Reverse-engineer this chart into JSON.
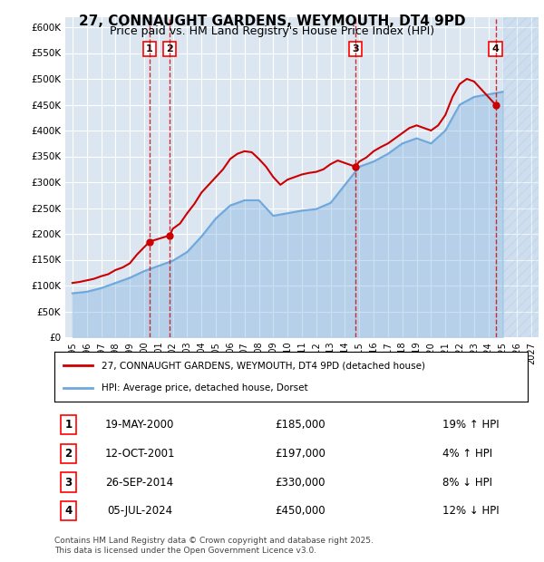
{
  "title": "27, CONNAUGHT GARDENS, WEYMOUTH, DT4 9PD",
  "subtitle": "Price paid vs. HM Land Registry's House Price Index (HPI)",
  "legend_line1": "27, CONNAUGHT GARDENS, WEYMOUTH, DT4 9PD (detached house)",
  "legend_line2": "HPI: Average price, detached house, Dorset",
  "footer": "Contains HM Land Registry data © Crown copyright and database right 2025.\nThis data is licensed under the Open Government Licence v3.0.",
  "table": [
    {
      "num": "1",
      "date": "19-MAY-2000",
      "price": "£185,000",
      "pct": "19% ↑ HPI"
    },
    {
      "num": "2",
      "date": "12-OCT-2001",
      "price": "£197,000",
      "pct": "4% ↑ HPI"
    },
    {
      "num": "3",
      "date": "26-SEP-2014",
      "price": "£330,000",
      "pct": "8% ↓ HPI"
    },
    {
      "num": "4",
      "date": "05-JUL-2024",
      "price": "£450,000",
      "pct": "12% ↓ HPI"
    }
  ],
  "sale_years": [
    2000.38,
    2001.78,
    2014.73,
    2024.5
  ],
  "sale_prices": [
    185000,
    197000,
    330000,
    450000
  ],
  "hpi_color": "#6fa8dc",
  "price_color": "#cc0000",
  "background_plot": "#dce6f1",
  "background_fig": "#ffffff",
  "grid_color": "#ffffff",
  "ylim": [
    0,
    620000
  ],
  "yticks": [
    0,
    50000,
    100000,
    150000,
    200000,
    250000,
    300000,
    350000,
    400000,
    450000,
    500000,
    550000,
    600000
  ],
  "xlim_start": 1994.5,
  "xlim_end": 2027.5,
  "xticks": [
    1995,
    1996,
    1997,
    1998,
    1999,
    2000,
    2001,
    2002,
    2003,
    2004,
    2005,
    2006,
    2007,
    2008,
    2009,
    2010,
    2011,
    2012,
    2013,
    2014,
    2015,
    2016,
    2017,
    2018,
    2019,
    2020,
    2021,
    2022,
    2023,
    2024,
    2025,
    2026,
    2027
  ],
  "hpi_years": [
    1995,
    1996,
    1997,
    1998,
    1999,
    2000,
    2001,
    2002,
    2003,
    2004,
    2005,
    2006,
    2007,
    2008,
    2009,
    2010,
    2011,
    2012,
    2013,
    2014,
    2015,
    2016,
    2017,
    2018,
    2019,
    2020,
    2021,
    2022,
    2023,
    2024,
    2025
  ],
  "hpi_values": [
    85000,
    88000,
    95000,
    105000,
    115000,
    128000,
    138000,
    148000,
    165000,
    195000,
    230000,
    255000,
    265000,
    265000,
    235000,
    240000,
    245000,
    248000,
    260000,
    295000,
    330000,
    340000,
    355000,
    375000,
    385000,
    375000,
    400000,
    450000,
    465000,
    470000,
    475000
  ],
  "price_years": [
    1995,
    1995.5,
    1996,
    1996.5,
    1997,
    1997.5,
    1998,
    1998.5,
    1999,
    1999.5,
    2000.38,
    2001.78,
    2002,
    2002.5,
    2003,
    2003.5,
    2004,
    2004.5,
    2005,
    2005.5,
    2006,
    2006.5,
    2007,
    2007.5,
    2008,
    2008.5,
    2009,
    2009.5,
    2010,
    2010.5,
    2011,
    2011.5,
    2012,
    2012.5,
    2013,
    2013.5,
    2014.73,
    2015,
    2015.5,
    2016,
    2016.5,
    2017,
    2017.5,
    2018,
    2018.5,
    2019,
    2019.5,
    2020,
    2020.5,
    2021,
    2021.5,
    2022,
    2022.5,
    2023,
    2023.5,
    2024.5
  ],
  "price_values": [
    105000,
    107000,
    110000,
    113000,
    118000,
    122000,
    130000,
    135000,
    143000,
    160000,
    185000,
    197000,
    210000,
    220000,
    240000,
    258000,
    280000,
    295000,
    310000,
    325000,
    345000,
    355000,
    360000,
    358000,
    345000,
    330000,
    310000,
    295000,
    305000,
    310000,
    315000,
    318000,
    320000,
    325000,
    335000,
    342000,
    330000,
    340000,
    348000,
    360000,
    368000,
    375000,
    385000,
    395000,
    405000,
    410000,
    405000,
    400000,
    410000,
    430000,
    465000,
    490000,
    500000,
    495000,
    480000,
    450000
  ]
}
